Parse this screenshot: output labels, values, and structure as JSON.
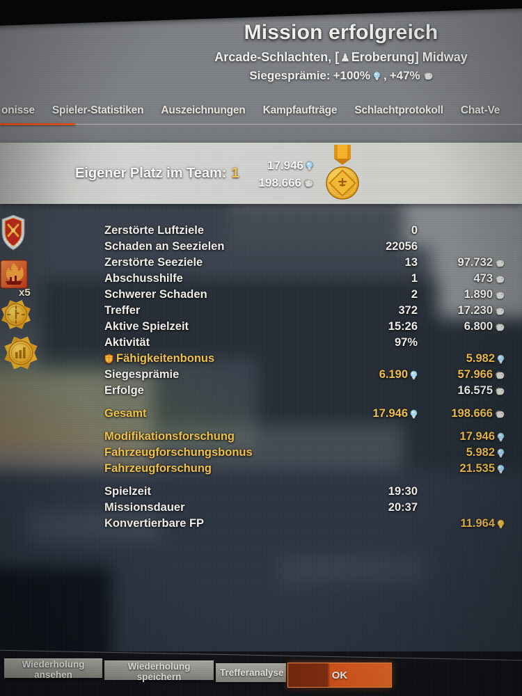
{
  "header": {
    "title": "Mission erfolgreich",
    "battle_info": {
      "prefix": "Arcade-Schlachten, [",
      "mode": "Eroberung",
      "suffix": "] Midway"
    },
    "reward_line": {
      "label": "Siegesprämie:",
      "xp_bonus": "+100%",
      "separator": ",",
      "credits_bonus": "+47%"
    }
  },
  "tabs": [
    {
      "label": "onisse",
      "active": true
    },
    {
      "label": "Spieler-Statistiken",
      "active": false
    },
    {
      "label": "Auszeichnungen",
      "active": false
    },
    {
      "label": "Kampfaufträge",
      "active": false
    },
    {
      "label": "Schlachtprotokoll",
      "active": false
    },
    {
      "label": "Chat-Ve",
      "active": false
    }
  ],
  "rank_banner": {
    "label": "Eigener Platz im Team:",
    "rank": "1",
    "xp": "17.946",
    "credits": "198.666"
  },
  "achievements": {
    "multiplier": "x5"
  },
  "stats": {
    "rows": [
      {
        "label": "Zerstörte Luftziele",
        "v2": {
          "t": "0"
        }
      },
      {
        "label": "Schaden an Seezielen",
        "v2": {
          "t": "22056"
        }
      },
      {
        "label": "Zerstörte Seeziele",
        "v2": {
          "t": "13"
        },
        "v3": {
          "t": "97.732",
          "ic": "credits"
        }
      },
      {
        "label": "Abschusshilfe",
        "v2": {
          "t": "1"
        },
        "v3": {
          "t": "473",
          "ic": "credits"
        }
      },
      {
        "label": "Schwerer Schaden",
        "v2": {
          "t": "2"
        },
        "v3": {
          "t": "1.890",
          "ic": "credits"
        }
      },
      {
        "label": "Treffer",
        "v2": {
          "t": "372"
        },
        "v3": {
          "t": "17.230",
          "ic": "credits"
        }
      },
      {
        "label": "Aktive Spielzeit",
        "v2": {
          "t": "15:26"
        },
        "v3": {
          "t": "6.800",
          "ic": "credits"
        }
      },
      {
        "label": "Aktivität",
        "v2": {
          "t": "97%"
        }
      },
      {
        "label": "Fähigkeitenbonus",
        "gold": true,
        "icon": "skill-shield",
        "v3": {
          "t": "5.982",
          "ic": "xp",
          "gold": true
        }
      },
      {
        "label": "Siegesprämie",
        "v2": {
          "t": "6.190",
          "ic": "xp",
          "gold": true
        },
        "v3": {
          "t": "57.966",
          "ic": "credits",
          "gold": true
        }
      },
      {
        "label": "Erfolge",
        "v3": {
          "t": "16.575",
          "ic": "credits"
        }
      },
      {
        "label": "Gesamt",
        "gold": true,
        "gap": true,
        "v2": {
          "t": "17.946",
          "ic": "xp",
          "gold": true
        },
        "v3": {
          "t": "198.666",
          "ic": "credits",
          "gold": true
        }
      },
      {
        "label": "Modifikationsforschung",
        "gold": true,
        "gap": true,
        "v3": {
          "t": "17.946",
          "ic": "xp",
          "gold": true
        }
      },
      {
        "label": "Fahrzeugforschungsbonus",
        "gold": true,
        "v3": {
          "t": "5.982",
          "ic": "xp",
          "gold": true
        }
      },
      {
        "label": "Fahrzeugforschung",
        "gold": true,
        "v3": {
          "t": "21.535",
          "ic": "xp",
          "gold": true
        }
      },
      {
        "label": "Spielzeit",
        "gap": true,
        "v2": {
          "t": "19:30"
        }
      },
      {
        "label": "Missionsdauer",
        "v2": {
          "t": "20:37"
        }
      },
      {
        "label": "Konvertierbare FP",
        "v3": {
          "t": "11.964",
          "ic": "convertible-xp",
          "gold": true
        }
      }
    ]
  },
  "footer": {
    "buttons": [
      "Wiederholung ansehen",
      "Wiederholung speichern",
      "Trefferanalyse",
      "OK"
    ]
  },
  "colors": {
    "accent": "#e2511c",
    "gold": "#f2c24a",
    "xp_blue": "#a8d8f0",
    "credits_gray": "#dcddd8",
    "ok_orange": "#ee6322"
  }
}
